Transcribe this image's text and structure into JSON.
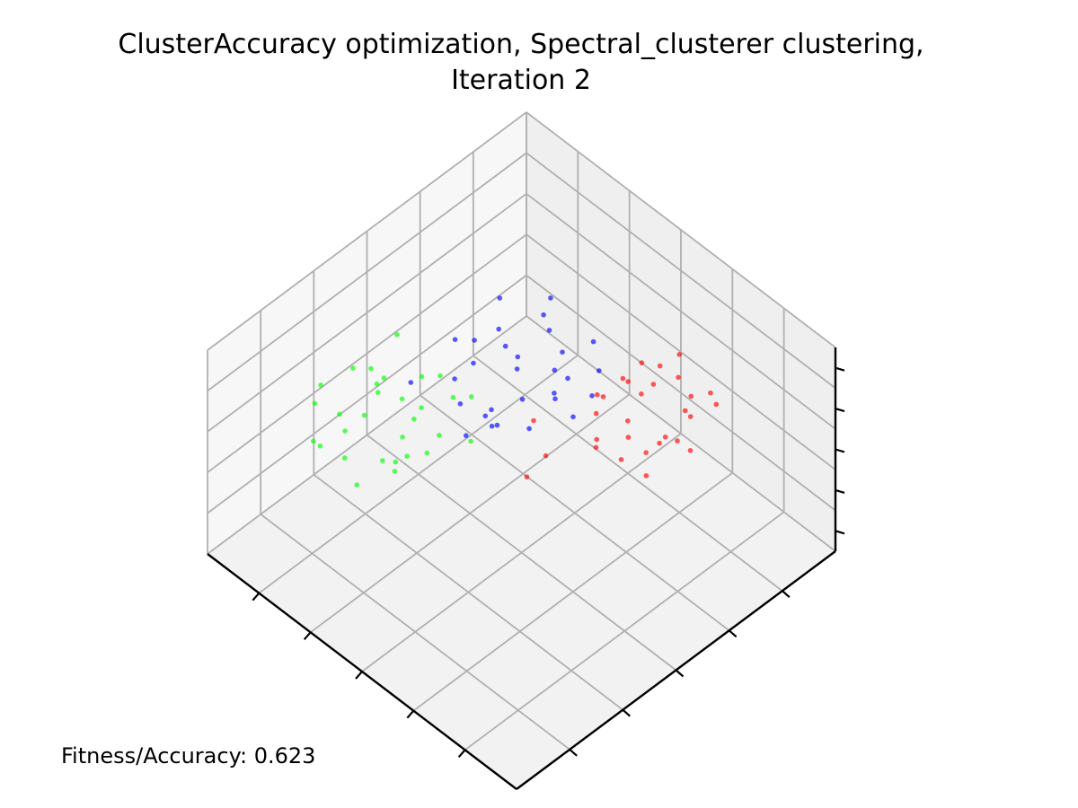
{
  "figure": {
    "title_line1": "ClusterAccuracy optimization, Spectral_clusterer clustering,",
    "title_line2": "Iteration 2",
    "fitness_text": "Fitness/Accuracy: 0.623"
  },
  "chart_data": {
    "type": "scatter",
    "projection": "3d",
    "title": "ClusterAccuracy optimization, Spectral_clusterer clustering, Iteration 2",
    "xlabel": "",
    "ylabel": "",
    "zlabel": "",
    "tick_labels_shown": false,
    "grid": true,
    "series": [
      {
        "color": "#ff0000",
        "points": [
          [
            -1.4,
            1.3,
            1.2
          ],
          [
            -1.1,
            1.0,
            1.5
          ],
          [
            -0.9,
            1.4,
            0.9
          ],
          [
            -0.6,
            1.1,
            1.3
          ],
          [
            -1.2,
            0.7,
            0.8
          ],
          [
            -0.8,
            0.9,
            1.8
          ],
          [
            -1.5,
            1.1,
            0.5
          ],
          [
            -0.5,
            1.5,
            1.1
          ],
          [
            -1.0,
            1.2,
            0.4
          ],
          [
            -0.7,
            0.6,
            1.2
          ],
          [
            -1.3,
            0.9,
            1.6
          ],
          [
            -0.4,
            1.2,
            0.7
          ],
          [
            -1.6,
            1.5,
            1.0
          ],
          [
            -0.9,
            0.8,
            0.2
          ],
          [
            -1.1,
            1.6,
            1.4
          ],
          [
            -0.3,
            0.9,
            1.6
          ],
          [
            -1.4,
            0.5,
            1.1
          ],
          [
            -0.6,
            1.4,
            0.3
          ],
          [
            -1.2,
            1.3,
            1.9
          ],
          [
            -0.8,
            0.4,
            0.9
          ],
          [
            0.2,
            0.6,
            0.8
          ],
          [
            -0.2,
            1.0,
            1.0
          ],
          [
            -1.7,
            0.8,
            1.3
          ],
          [
            -0.5,
            0.7,
            0.5
          ],
          [
            -1.0,
            1.7,
            0.8
          ],
          [
            0.1,
            0.3,
            1.2
          ],
          [
            -1.3,
            0.3,
            0.6
          ],
          [
            -0.7,
            1.8,
            1.5
          ],
          [
            -1.8,
            1.2,
            0.7
          ],
          [
            0.4,
            0.5,
            0.4
          ]
        ]
      },
      {
        "color": "#00ff00",
        "points": [
          [
            1.3,
            -1.2,
            1.0
          ],
          [
            1.0,
            -0.9,
            1.4
          ],
          [
            1.5,
            -0.7,
            0.7
          ],
          [
            0.8,
            -1.4,
            1.1
          ],
          [
            1.2,
            -0.5,
            1.6
          ],
          [
            0.6,
            -1.0,
            0.6
          ],
          [
            1.7,
            -1.1,
            1.2
          ],
          [
            0.9,
            -0.6,
            0.3
          ],
          [
            1.4,
            -1.5,
            0.8
          ],
          [
            0.5,
            -0.8,
            1.5
          ],
          [
            1.1,
            -1.3,
            1.8
          ],
          [
            1.6,
            -0.4,
            0.9
          ],
          [
            0.7,
            -1.6,
            0.4
          ],
          [
            1.9,
            -0.9,
            1.0
          ],
          [
            1.0,
            -0.3,
            1.2
          ],
          [
            0.4,
            -1.2,
            0.9
          ],
          [
            1.5,
            -1.7,
            1.4
          ],
          [
            1.2,
            -0.8,
            0.2
          ],
          [
            0.3,
            -0.5,
            1.1
          ],
          [
            1.8,
            -1.4,
            0.6
          ],
          [
            0.9,
            -1.8,
            1.0
          ],
          [
            2.0,
            -0.6,
            0.8
          ],
          [
            0.6,
            -0.2,
            0.7
          ],
          [
            1.3,
            -1.0,
            2.0
          ],
          [
            2.1,
            -1.2,
            1.3
          ],
          [
            0.2,
            -0.9,
            0.5
          ],
          [
            1.6,
            -0.2,
            1.5
          ],
          [
            0.8,
            -1.1,
            0.0
          ],
          [
            1.4,
            -1.9,
            0.6
          ],
          [
            0.5,
            -1.5,
            1.7
          ]
        ]
      },
      {
        "color": "#0000ff",
        "points": [
          [
            -1.2,
            -1.3,
            -0.6
          ],
          [
            -0.9,
            -1.0,
            -0.2
          ],
          [
            -1.5,
            -0.8,
            -0.9
          ],
          [
            -0.7,
            -1.5,
            -0.4
          ],
          [
            -1.1,
            -0.6,
            0.0
          ],
          [
            -0.5,
            -1.1,
            -1.0
          ],
          [
            -1.6,
            -1.2,
            -0.3
          ],
          [
            -0.8,
            -0.7,
            -1.2
          ],
          [
            -1.3,
            -1.6,
            -0.8
          ],
          [
            -0.4,
            -0.9,
            -0.5
          ],
          [
            -1.0,
            -1.4,
            0.2
          ],
          [
            -1.7,
            -0.5,
            -0.6
          ],
          [
            -0.6,
            -1.7,
            -0.9
          ],
          [
            -1.4,
            -0.9,
            -1.4
          ],
          [
            -0.9,
            -0.4,
            -0.1
          ],
          [
            -0.3,
            -1.3,
            -0.7
          ],
          [
            -1.8,
            -1.5,
            -0.5
          ],
          [
            -1.1,
            -0.3,
            -0.8
          ],
          [
            -0.2,
            -0.6,
            -0.3
          ],
          [
            -1.5,
            -1.9,
            -0.2
          ],
          [
            -0.7,
            -1.2,
            -1.6
          ],
          [
            -2.0,
            -0.9,
            -0.7
          ],
          [
            -1.2,
            -2.0,
            -1.0
          ],
          [
            -0.5,
            -0.5,
            0.1
          ],
          [
            -1.9,
            -1.3,
            -1.3
          ],
          [
            -0.1,
            -1.0,
            -0.9
          ],
          [
            -1.3,
            -0.2,
            -0.4
          ],
          [
            -0.8,
            -1.9,
            -0.4
          ],
          [
            -2.2,
            -1.8,
            -0.9
          ],
          [
            -0.3,
            -2.1,
            -1.1
          ]
        ]
      }
    ]
  }
}
